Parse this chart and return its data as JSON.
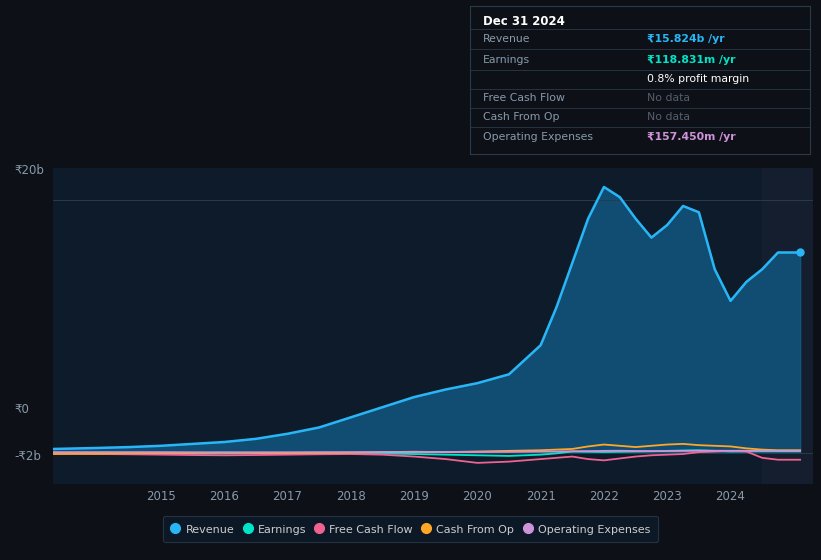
{
  "background_color": "#0d1117",
  "plot_bg_color": "#0d1b2a",
  "grid_color": "#2a3a4a",
  "title_box": {
    "title": "Dec 31 2024",
    "rows": [
      {
        "label": "Revenue",
        "value": "₹15.824b /yr",
        "value_color": "#29b6f6"
      },
      {
        "label": "Earnings",
        "value": "₹118.831m /yr",
        "value_color": "#00e5c8"
      },
      {
        "label": "",
        "value": "0.8% profit margin",
        "value_color": "#ffffff"
      },
      {
        "label": "Free Cash Flow",
        "value": "No data",
        "value_color": "#555e6e"
      },
      {
        "label": "Cash From Op",
        "value": "No data",
        "value_color": "#555e6e"
      },
      {
        "label": "Operating Expenses",
        "value": "₹157.450m /yr",
        "value_color": "#ce93d8"
      }
    ]
  },
  "years": [
    2013.3,
    2014.0,
    2014.5,
    2015.0,
    2015.5,
    2016.0,
    2016.5,
    2017.0,
    2017.5,
    2018.0,
    2018.5,
    2019.0,
    2019.5,
    2020.0,
    2020.5,
    2021.0,
    2021.25,
    2021.5,
    2021.75,
    2022.0,
    2022.25,
    2022.5,
    2022.75,
    2023.0,
    2023.25,
    2023.5,
    2023.75,
    2024.0,
    2024.25,
    2024.5,
    2024.75,
    2025.1
  ],
  "revenue": [
    0.3,
    0.38,
    0.45,
    0.55,
    0.7,
    0.85,
    1.1,
    1.5,
    2.0,
    2.8,
    3.6,
    4.4,
    5.0,
    5.5,
    6.2,
    8.5,
    11.5,
    15.0,
    18.5,
    21.0,
    20.2,
    18.5,
    17.0,
    18.0,
    19.5,
    19.0,
    14.5,
    12.0,
    13.5,
    14.5,
    15.824,
    15.824
  ],
  "earnings": [
    0.0,
    -0.05,
    -0.08,
    -0.1,
    -0.08,
    -0.06,
    -0.05,
    -0.04,
    -0.03,
    -0.04,
    -0.06,
    -0.1,
    -0.15,
    -0.2,
    -0.25,
    -0.15,
    -0.05,
    0.1,
    0.08,
    0.06,
    0.08,
    0.1,
    0.12,
    0.15,
    0.18,
    0.2,
    0.15,
    0.1,
    0.119,
    0.119,
    0.119,
    0.119
  ],
  "free_cash_flow": [
    -0.05,
    -0.1,
    -0.12,
    -0.15,
    -0.18,
    -0.2,
    -0.18,
    -0.15,
    -0.12,
    -0.1,
    -0.15,
    -0.3,
    -0.5,
    -0.8,
    -0.7,
    -0.5,
    -0.4,
    -0.3,
    -0.5,
    -0.6,
    -0.45,
    -0.3,
    -0.2,
    -0.15,
    -0.1,
    0.05,
    0.1,
    0.15,
    0.1,
    -0.4,
    -0.55,
    -0.55
  ],
  "cash_from_op": [
    -0.1,
    -0.08,
    -0.05,
    -0.03,
    -0.02,
    0.0,
    -0.02,
    -0.03,
    -0.02,
    0.0,
    0.05,
    0.08,
    0.05,
    0.1,
    0.15,
    0.2,
    0.25,
    0.3,
    0.5,
    0.65,
    0.55,
    0.45,
    0.55,
    0.65,
    0.7,
    0.6,
    0.55,
    0.5,
    0.35,
    0.25,
    0.2,
    0.2
  ],
  "op_expenses": [
    0.05,
    0.05,
    0.05,
    0.05,
    0.04,
    0.04,
    0.04,
    0.04,
    0.05,
    0.05,
    0.05,
    0.06,
    0.06,
    0.06,
    0.07,
    0.09,
    0.1,
    0.12,
    0.13,
    0.15,
    0.16,
    0.14,
    0.13,
    0.14,
    0.15,
    0.16,
    0.16,
    0.157,
    0.157,
    0.157,
    0.157,
    0.157
  ],
  "revenue_color": "#29b6f6",
  "earnings_color": "#00e5c8",
  "free_cash_flow_color": "#f06292",
  "cash_from_op_color": "#ffa726",
  "op_expenses_color": "#ce93d8",
  "ylim": [
    -2.5,
    22.5
  ],
  "xlim": [
    2013.3,
    2025.3
  ],
  "xticks": [
    2015,
    2016,
    2017,
    2018,
    2019,
    2020,
    2021,
    2022,
    2023,
    2024
  ],
  "legend_labels": [
    "Revenue",
    "Earnings",
    "Free Cash Flow",
    "Cash From Op",
    "Operating Expenses"
  ],
  "legend_colors": [
    "#29b6f6",
    "#00e5c8",
    "#f06292",
    "#ffa726",
    "#ce93d8"
  ]
}
